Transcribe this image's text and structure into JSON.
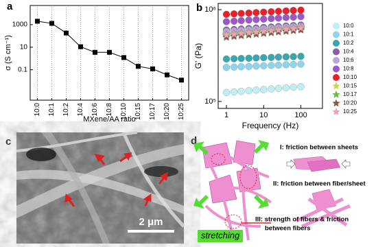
{
  "chart_data": [
    {
      "type": "line",
      "panel": "a",
      "xlabel": "MXene/AA ratio",
      "ylabel": "σ (S cm⁻¹)",
      "categories": [
        "10:0",
        "10:1",
        "10:2",
        "10:4",
        "10:6",
        "10:8",
        "10:10",
        "10:15",
        "10:17",
        "10:20",
        "10:25"
      ],
      "values": [
        2000,
        1300,
        180,
        11,
        3.5,
        3.5,
        1.2,
        0.2,
        0.12,
        0.035,
        0.012
      ],
      "color": "#000000",
      "log_y": true,
      "ylim": [
        0.0002,
        50000
      ],
      "yticks": [
        0.1,
        10,
        1000
      ],
      "grid": true
    },
    {
      "type": "scatter",
      "panel": "b",
      "xlabel": "Frequency (Hz)",
      "ylabel": "G' (Pa)",
      "log_x": true,
      "log_y": true,
      "x": [
        1,
        1.6,
        2.5,
        4,
        6.3,
        10,
        16,
        25,
        40,
        63,
        100
      ],
      "xlim": [
        0.6,
        380
      ],
      "xticks": [
        1,
        10,
        100
      ],
      "ylim": [
        84000,
        1170000
      ],
      "yticks": [
        {
          "value": 100000,
          "label": "10⁵"
        },
        {
          "value": 1000000,
          "label": "10⁶"
        }
      ],
      "series": [
        {
          "name": "10:0",
          "color": "#bfeef5",
          "marker": "circle",
          "values": [
            125000,
            127000,
            129000,
            131000,
            133000,
            135000,
            137000,
            139000,
            141000,
            143000,
            145000
          ]
        },
        {
          "name": "10:1",
          "color": "#8fd3ec",
          "marker": "circle",
          "values": [
            235000,
            237000,
            239000,
            241000,
            243000,
            245000,
            247000,
            249000,
            251000,
            253000,
            255000
          ]
        },
        {
          "name": "10:2",
          "color": "#3aa6b0",
          "marker": "circle",
          "values": [
            290000,
            292000,
            294000,
            296000,
            298000,
            300000,
            302000,
            304000,
            306000,
            308000,
            310000
          ]
        },
        {
          "name": "10:4",
          "color": "#8a5fa8",
          "marker": "circle",
          "values": [
            600000,
            608000,
            616000,
            624000,
            632000,
            640000,
            648000,
            656000,
            664000,
            672000,
            680000
          ]
        },
        {
          "name": "10:6",
          "color": "#b8a8d8",
          "marker": "circle",
          "values": [
            580000,
            588000,
            596000,
            604000,
            612000,
            620000,
            628000,
            636000,
            644000,
            652000,
            660000
          ]
        },
        {
          "name": "10:8",
          "color": "#9b59c8",
          "marker": "circle",
          "values": [
            740000,
            750000,
            760000,
            770000,
            780000,
            790000,
            800000,
            810000,
            820000,
            830000,
            840000
          ]
        },
        {
          "name": "10:10",
          "color": "#e8202a",
          "marker": "circle",
          "values": [
            890000,
            900000,
            910000,
            920000,
            930000,
            940000,
            950000,
            960000,
            970000,
            980000,
            990000
          ]
        },
        {
          "name": "10:15",
          "color": "#c8d84a",
          "marker": "star",
          "values": [
            540000,
            550000,
            560000,
            570000,
            580000,
            590000,
            600000,
            610000,
            620000,
            630000,
            640000
          ]
        },
        {
          "name": "10:17",
          "color": "#6fb84a",
          "marker": "star",
          "values": [
            520000,
            530000,
            540000,
            550000,
            560000,
            570000,
            580000,
            590000,
            600000,
            610000,
            620000
          ]
        },
        {
          "name": "10:20",
          "color": "#8a5a3a",
          "marker": "star",
          "values": [
            500000,
            510000,
            520000,
            530000,
            540000,
            550000,
            560000,
            570000,
            580000,
            590000,
            600000
          ]
        },
        {
          "name": "10:25",
          "color": "#f0a0b8",
          "marker": "star",
          "values": [
            530000,
            540000,
            550000,
            560000,
            570000,
            580000,
            590000,
            600000,
            610000,
            620000,
            630000
          ]
        }
      ]
    }
  ],
  "panel_labels": [
    "a",
    "b",
    "c",
    "d"
  ],
  "image": {
    "scale_bar": "2 μm"
  },
  "diagram": {
    "action": "stretching",
    "mechanisms": [
      "I: friction between sheets",
      "II: friction between fiber/sheet",
      "III: strength of fibers & friction",
      "between fibers"
    ]
  }
}
